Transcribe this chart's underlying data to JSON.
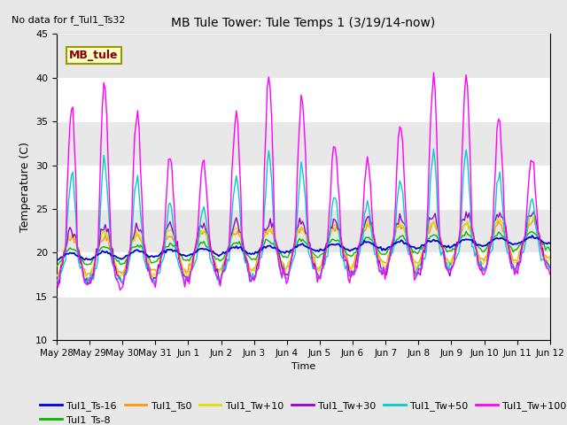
{
  "title": "MB Tule Tower: Tule Temps 1 (3/19/14-now)",
  "top_left_text": "No data for f_Tul1_Ts32",
  "xlabel": "Time",
  "ylabel": "Temperature (C)",
  "ylim": [
    10,
    45
  ],
  "yticks": [
    10,
    15,
    20,
    25,
    30,
    35,
    40,
    45
  ],
  "fig_bg_color": "#e8e8e8",
  "plot_bg_color": "#ffffff",
  "annotation_box": "MB_tule",
  "annotation_color": "#880000",
  "annotation_bg": "#ffffcc",
  "annotation_border": "#999900",
  "series_colors": {
    "Tul1_Ts-16": "#0000dd",
    "Tul1_Ts-8": "#00bb00",
    "Tul1_Ts0": "#ff9900",
    "Tul1_Tw+10": "#dddd00",
    "Tul1_Tw+30": "#9900cc",
    "Tul1_Tw+50": "#00cccc",
    "Tul1_Tw+100": "#ff00ff"
  },
  "date_labels": [
    "May 28",
    "May 29",
    "May 30",
    "May 31",
    "Jun 1",
    "Jun 2",
    "Jun 3",
    "Jun 4",
    "Jun 5",
    "Jun 6",
    "Jun 7",
    "Jun 8",
    "Jun 9",
    "Jun 10",
    "Jun 11",
    "Jun 12"
  ],
  "n_points": 336,
  "seed": 42
}
